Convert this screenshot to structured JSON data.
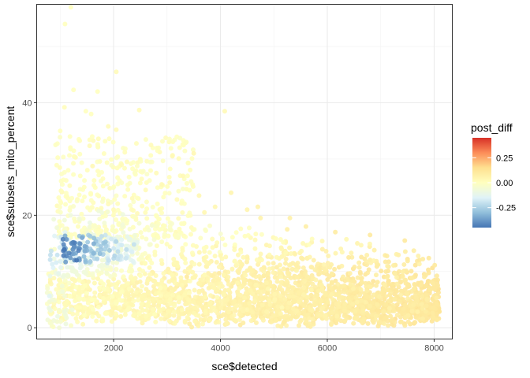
{
  "chart_data": {
    "type": "scatter",
    "xlabel": "sce$detected",
    "ylabel": "sce$subsets_mito_percent",
    "xlim": [
      560,
      8340
    ],
    "ylim": [
      -2.0,
      57.5
    ],
    "x_ticks": [
      2000,
      4000,
      6000,
      8000
    ],
    "y_ticks": [
      0,
      20,
      40
    ],
    "grid": true,
    "legend": {
      "title": "post_diff",
      "position": "right",
      "range": [
        -0.45,
        0.45
      ],
      "ticks": [
        0.25,
        0.0,
        -0.25
      ],
      "tick_labels": [
        "0.25",
        "0.00",
        "-0.25"
      ],
      "colors": [
        "#4575b4",
        "#91bfdb",
        "#e0f3f8",
        "#ffffbf",
        "#fee090",
        "#fc8d59",
        "#d73027"
      ]
    },
    "marker": {
      "size": 6,
      "opacity": 0.9
    },
    "series": [
      {
        "points": [
          [
            1200,
            57
          ],
          [
            1090,
            54
          ],
          [
            2050,
            45.5
          ],
          [
            1250,
            42.3
          ],
          [
            1700,
            42
          ],
          [
            4080,
            38.5
          ],
          [
            1080,
            39.2
          ],
          [
            1480,
            38.5
          ],
          [
            1580,
            38
          ],
          [
            2480,
            38.7
          ],
          [
            1900,
            35.8
          ],
          [
            2050,
            35.2
          ],
          [
            1350,
            33.5
          ],
          [
            2700,
            32.5
          ],
          [
            3500,
            31
          ],
          [
            3100,
            30.5
          ],
          [
            1000,
            35
          ],
          [
            1600,
            34
          ],
          [
            2150,
            29
          ],
          [
            2250,
            29.5
          ],
          [
            1150,
            28
          ],
          [
            2800,
            27.5
          ],
          [
            3300,
            27
          ],
          [
            1800,
            26.5
          ],
          [
            2900,
            25.5
          ],
          [
            3050,
            25.8
          ],
          [
            1450,
            25
          ],
          [
            2600,
            24.5
          ],
          [
            2350,
            23
          ],
          [
            3600,
            23.5
          ],
          [
            4200,
            24
          ],
          [
            1000,
            22.5
          ],
          [
            1900,
            22
          ],
          [
            3900,
            21.5
          ],
          [
            4700,
            21.5
          ],
          [
            2000,
            21
          ],
          [
            4500,
            21
          ],
          [
            3700,
            20.5
          ],
          [
            1400,
            20.2
          ],
          [
            5300,
            19.5
          ],
          [
            4750,
            19.5
          ],
          [
            5600,
            18
          ],
          [
            5250,
            17.5
          ],
          [
            6150,
            17
          ],
          [
            6800,
            16.5
          ],
          [
            7450,
            15.5
          ],
          [
            6400,
            12.5
          ],
          [
            4000,
            12.8
          ]
        ],
        "colors": [
          0.0,
          0.0,
          0.02,
          0.0,
          0.0,
          0.03,
          0.01,
          0.0,
          0.0,
          0.02,
          0.02,
          0.02,
          0.0,
          0.02,
          0.04,
          0.03,
          0.0,
          0.0,
          0.02,
          0.02,
          0.0,
          0.02,
          0.03,
          0.01,
          0.03,
          0.03,
          0.0,
          0.02,
          0.02,
          0.04,
          0.05,
          0.0,
          0.02,
          0.04,
          0.06,
          0.02,
          0.05,
          0.04,
          0.0,
          0.07,
          0.06,
          0.08,
          0.07,
          0.09,
          0.1,
          0.1,
          0.1,
          0.04
        ]
      }
    ]
  }
}
